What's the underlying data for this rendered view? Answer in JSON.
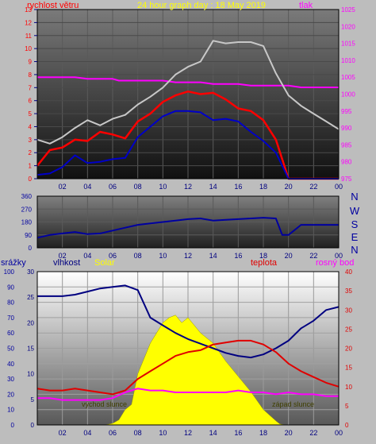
{
  "panel1": {
    "title": "24 hour graph day : 18 May 2019",
    "left_label": "rychlost větru",
    "right_label": "tlak"
  },
  "panel2": {
    "right_labels": [
      "N",
      "W",
      "S",
      "E",
      "N"
    ]
  },
  "panel3": {
    "labels": {
      "srazky": "srážky",
      "vlhkost": "vlhkost",
      "solar": "Solar",
      "teplota": "teplota",
      "rosny": "rosný bod"
    },
    "annotations": {
      "sunrise": "východ slunce",
      "sunset": "západ slunce"
    }
  },
  "colors": {
    "frame_bg": "#bdbdbd",
    "wind_label": "#ff0000",
    "pressure": "#ff00ff",
    "wind_avg": "#ff0000",
    "wind_gust": "#c8c8c8",
    "wind_dir": "#0000a0",
    "humidity": "#000080",
    "solar": "#ffff00",
    "temperature": "#e00000",
    "dewpoint": "#ff00ff"
  },
  "chart_data": [
    {
      "type": "line",
      "title": "24 hour graph day : 18 May 2019",
      "x_tick_labels": [
        "02",
        "04",
        "06",
        "08",
        "10",
        "12",
        "14",
        "16",
        "18",
        "20",
        "22",
        "00"
      ],
      "ylabel_left": "rychlost větru",
      "ylabel_right": "tlak",
      "ylim_left": [
        0,
        13
      ],
      "ylim_right": [
        975,
        1025
      ],
      "yticks_left": [
        0,
        1,
        2,
        3,
        4,
        5,
        6,
        7,
        8,
        9,
        10,
        11,
        12,
        13
      ],
      "yticks_right": [
        975,
        980,
        985,
        990,
        995,
        1000,
        1005,
        1010,
        1015,
        1020,
        1025
      ],
      "series": [
        {
          "axis": "right",
          "color": "#ff00ff",
          "x_hours": [
            0,
            1,
            2,
            3,
            4,
            5,
            6,
            6.5,
            7,
            8,
            9,
            10,
            11,
            12,
            13,
            14,
            15,
            16,
            17,
            18,
            19,
            20,
            21,
            22,
            23,
            24
          ],
          "values": [
            1005,
            1005,
            1005,
            1005,
            1004.5,
            1004.5,
            1004.5,
            1004,
            1004,
            1004,
            1004,
            1004,
            1003.5,
            1003.5,
            1003.5,
            1003,
            1003,
            1003,
            1002.5,
            1002.5,
            1002.5,
            1002.5,
            1002,
            1002,
            1002,
            1002
          ]
        },
        {
          "axis": "left",
          "color": "#c8c8c8",
          "x_hours": [
            0,
            1,
            2,
            3,
            4,
            5,
            6,
            7,
            8,
            9,
            10,
            11,
            12,
            13,
            14,
            15,
            16,
            17,
            18,
            19,
            20,
            21,
            22,
            23,
            24
          ],
          "values": [
            3.0,
            2.7,
            3.2,
            3.9,
            4.5,
            4.1,
            4.6,
            4.9,
            5.7,
            6.3,
            7.0,
            8.0,
            8.6,
            9.0,
            10.6,
            10.4,
            10.5,
            10.5,
            10.2,
            8.1,
            6.4,
            5.6,
            5.0,
            4.4,
            3.8
          ]
        },
        {
          "axis": "left",
          "color": "#ff0000",
          "x_hours": [
            0,
            1,
            2,
            3,
            4,
            5,
            6,
            7,
            8,
            9,
            10,
            11,
            12,
            13,
            14,
            15,
            16,
            17,
            18,
            19,
            20,
            21,
            22,
            23,
            24
          ],
          "values": [
            1.0,
            2.2,
            2.4,
            3.0,
            2.9,
            3.6,
            3.4,
            3.1,
            4.4,
            5.0,
            5.9,
            6.4,
            6.7,
            6.5,
            6.6,
            6.1,
            5.4,
            5.2,
            4.5,
            3.0,
            0.0,
            0.0,
            0.0,
            0.0,
            0.0
          ]
        },
        {
          "axis": "left",
          "color": "#0000c8",
          "x_hours": [
            0,
            1,
            2,
            3,
            4,
            5,
            6,
            7,
            8,
            9,
            10,
            11,
            12,
            13,
            14,
            15,
            16,
            17,
            18,
            19,
            20,
            21,
            22,
            23,
            24
          ],
          "values": [
            0.3,
            0.4,
            0.9,
            1.8,
            1.2,
            1.3,
            1.5,
            1.6,
            3.2,
            4.0,
            4.8,
            5.2,
            5.2,
            5.1,
            4.5,
            4.6,
            4.4,
            3.6,
            2.9,
            2.0,
            0.0,
            0.0,
            0.0,
            0.0,
            0.0
          ]
        }
      ]
    },
    {
      "type": "line",
      "x_tick_labels": [
        "02",
        "04",
        "06",
        "08",
        "10",
        "12",
        "14",
        "16",
        "18",
        "20",
        "22",
        "00"
      ],
      "ylim": [
        0,
        360
      ],
      "yticks": [
        0,
        90,
        180,
        270,
        360
      ],
      "series": [
        {
          "color": "#0000a0",
          "x_hours": [
            0,
            1,
            2,
            3,
            4,
            5,
            6,
            7,
            8,
            9,
            10,
            11,
            12,
            13,
            14,
            15,
            16,
            17,
            18,
            19,
            19.5,
            20,
            21,
            22,
            23,
            24
          ],
          "values": [
            70,
            90,
            100,
            110,
            95,
            100,
            120,
            140,
            160,
            170,
            180,
            190,
            200,
            205,
            190,
            195,
            200,
            205,
            210,
            205,
            90,
            90,
            160,
            160,
            160,
            160
          ]
        }
      ]
    },
    {
      "type": "area",
      "x_tick_labels": [
        "02",
        "04",
        "06",
        "08",
        "10",
        "12",
        "14",
        "16",
        "18",
        "20",
        "22",
        "00"
      ],
      "axes": {
        "srazky": {
          "ylim": [
            0,
            30
          ],
          "yticks": [
            0,
            5,
            10,
            15,
            20,
            25,
            30
          ]
        },
        "vlhkost": {
          "ylim": [
            0,
            100
          ],
          "yticks": [
            0,
            10,
            20,
            30,
            40,
            50,
            60,
            70,
            80,
            90,
            100
          ]
        },
        "teplota": {
          "ylim": [
            0,
            40
          ],
          "yticks": [
            0,
            5,
            10,
            15,
            20,
            25,
            30,
            35,
            40
          ]
        }
      },
      "series": [
        {
          "name": "Solar",
          "axis": "srazky",
          "color": "#ffff00",
          "x_hours": [
            5.4,
            6.0,
            6.5,
            7.0,
            7.5,
            8.0,
            9.0,
            10.0,
            10.5,
            11.0,
            11.5,
            12.0,
            13.0,
            14.0,
            15.0,
            16.0,
            17.0,
            18.0,
            19.0,
            19.3,
            19.7
          ],
          "values": [
            0,
            0.3,
            1.0,
            3.0,
            4.0,
            10.0,
            16.0,
            20.0,
            21.0,
            21.5,
            20.0,
            21.0,
            18.0,
            16.0,
            12.5,
            9.5,
            6.5,
            3.0,
            0.8,
            0.2,
            0
          ]
        },
        {
          "name": "vlhkost",
          "axis": "vlhkost",
          "color": "#000080",
          "x_hours": [
            0,
            2,
            3,
            4,
            5,
            6,
            7,
            8,
            9,
            10,
            11,
            12,
            13,
            14,
            15,
            16,
            17,
            18,
            19,
            20,
            21,
            22,
            23,
            24
          ],
          "values": [
            84,
            84,
            85,
            87,
            89,
            90,
            91,
            88,
            70,
            65,
            60,
            56,
            53,
            50,
            47,
            45,
            44,
            46,
            50,
            55,
            63,
            68,
            75,
            77
          ]
        },
        {
          "name": "teplota",
          "axis": "teplota",
          "color": "#e00000",
          "x_hours": [
            0,
            1,
            2,
            3,
            4,
            5,
            6,
            7,
            8,
            9,
            10,
            11,
            12,
            13,
            14,
            15,
            16,
            17,
            18,
            19,
            20,
            21,
            22,
            23,
            24
          ],
          "values": [
            9.5,
            9.0,
            9.0,
            9.5,
            9.0,
            8.5,
            8.0,
            9.0,
            12.0,
            14.0,
            16.0,
            18.0,
            19.0,
            19.5,
            21.0,
            21.5,
            22.0,
            22.0,
            21.0,
            19.0,
            16.0,
            14.0,
            12.5,
            11.0,
            10.0
          ]
        },
        {
          "name": "rosný bod",
          "axis": "teplota",
          "color": "#ff00ff",
          "x_hours": [
            0,
            1,
            2,
            3,
            4,
            5,
            6,
            7,
            8,
            9,
            10,
            11,
            12,
            13,
            14,
            15,
            16,
            17,
            18,
            19,
            20,
            21,
            22,
            23,
            24
          ],
          "values": [
            7.0,
            7.0,
            6.5,
            6.5,
            6.5,
            6.5,
            7.0,
            8.5,
            9.5,
            9.0,
            9.0,
            8.5,
            8.5,
            8.5,
            8.5,
            8.5,
            9.0,
            8.5,
            8.5,
            8.0,
            8.5,
            8.0,
            8.0,
            7.5,
            7.5
          ]
        }
      ]
    }
  ]
}
